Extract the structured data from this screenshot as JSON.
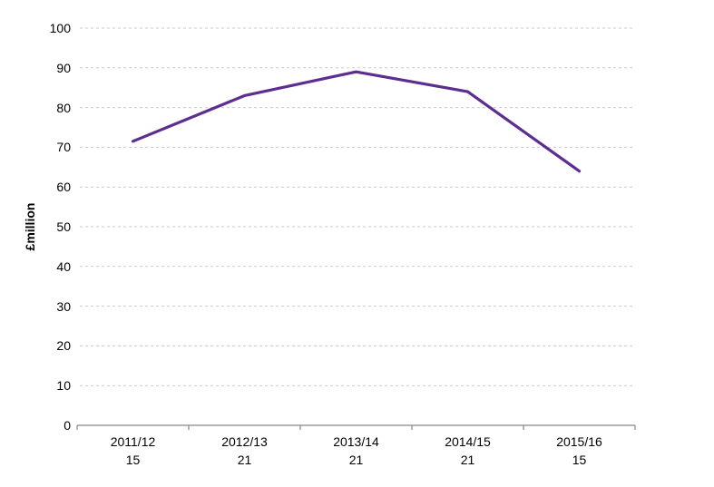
{
  "chart_data": {
    "type": "line",
    "title": "",
    "categories": [
      "2011/12",
      "2012/13",
      "2013/14",
      "2014/15",
      "2015/16"
    ],
    "category_sublabels": [
      "15",
      "21",
      "21",
      "21",
      "15"
    ],
    "series": [
      {
        "name": "series-1",
        "values": [
          71.5,
          83,
          89,
          84,
          64
        ]
      }
    ],
    "xlabel": "",
    "ylabel": "£million",
    "ylim": [
      0,
      100
    ],
    "ytick_step": 10,
    "grid": "horizontal-dashed",
    "legend": "none",
    "markers": "none",
    "colors": {
      "line": "#5C2E91",
      "gridline": "#C9C9C9",
      "axis": "#868686",
      "text": "#000000",
      "background": "#FFFFFF"
    }
  }
}
